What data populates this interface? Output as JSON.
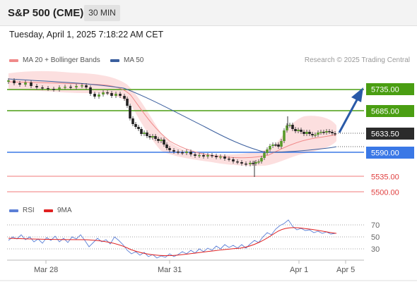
{
  "header": {
    "title": "S&P 500 (CME)",
    "timeframe": "30 MIN"
  },
  "timestamp": "Tuesday, April 1, 2025 7:18:22 AM CET",
  "legend": {
    "ma20": {
      "label": "MA 20 + Bollinger Bands",
      "color": "#f08a8a"
    },
    "ma50": {
      "label": "MA 50",
      "color": "#3b5f9e"
    }
  },
  "credit": "Research © 2025 Trading Central",
  "price_levels": [
    {
      "label": "5735.00",
      "style": "green"
    },
    {
      "label": "5685.00",
      "style": "green"
    },
    {
      "label": "5633.50",
      "style": "dark"
    },
    {
      "label": "5590.00",
      "style": "blue"
    },
    {
      "label": "5535.00",
      "style": "red-text"
    },
    {
      "label": "5500.00",
      "style": "red-text"
    }
  ],
  "rsi_legend": {
    "rsi": {
      "label": "RSI",
      "color": "#5b7fd6"
    },
    "ma9": {
      "label": "9MA",
      "color": "#e02020"
    }
  },
  "rsi_levels": [
    "70",
    "50",
    "30"
  ],
  "x_axis": [
    "Mar 28",
    "Mar 31",
    "Apr 1",
    "Apr 5"
  ],
  "colors": {
    "green": "#4a9e12",
    "blue": "#3a78e6",
    "dark": "#2b2b2b",
    "red": "#e05050",
    "arrow": "#2a5aa8"
  }
}
